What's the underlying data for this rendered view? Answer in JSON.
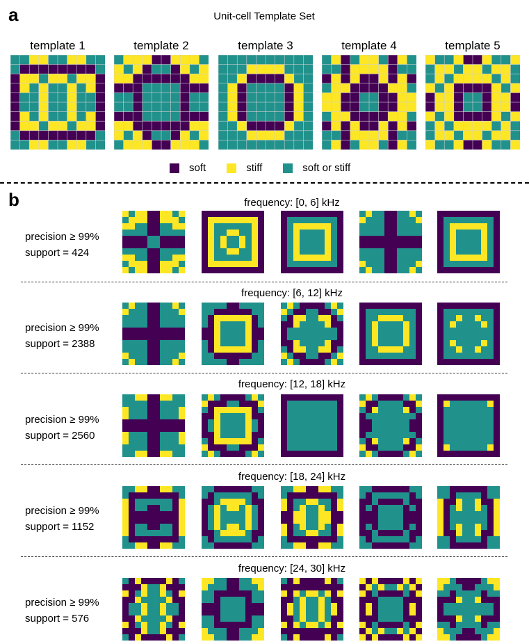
{
  "panel_a": {
    "letter": "a",
    "title": "Unit-cell Template Set",
    "templates": [
      {
        "label": "template 1"
      },
      {
        "label": "template 2"
      },
      {
        "label": "template 3"
      },
      {
        "label": "template 4"
      },
      {
        "label": "template 5"
      }
    ],
    "legend": [
      {
        "label": "soft",
        "color": "#440154"
      },
      {
        "label": "stiff",
        "color": "#fde725"
      },
      {
        "label": "soft or stiff",
        "color": "#21918c"
      }
    ]
  },
  "panel_b": {
    "letter": "b",
    "rows": [
      {
        "frequency": "frequency: [0, 6] kHz",
        "precision": "precision ≥ 99%",
        "support": "support = 424"
      },
      {
        "frequency": "frequency: [6, 12] kHz",
        "precision": "precision ≥ 99%",
        "support": "support = 2388"
      },
      {
        "frequency": "frequency: [12, 18] kHz",
        "precision": "precision ≥ 99%",
        "support": "support = 2560"
      },
      {
        "frequency": "frequency: [18, 24] kHz",
        "precision": "precision ≥ 99%",
        "support": "support = 1152"
      },
      {
        "frequency": "frequency: [24, 30] kHz",
        "precision": "precision ≥ 99%",
        "support": "support = 576"
      }
    ]
  },
  "colors": {
    "soft": "#440154",
    "stiff": "#fde725",
    "either": "#21918c"
  }
}
